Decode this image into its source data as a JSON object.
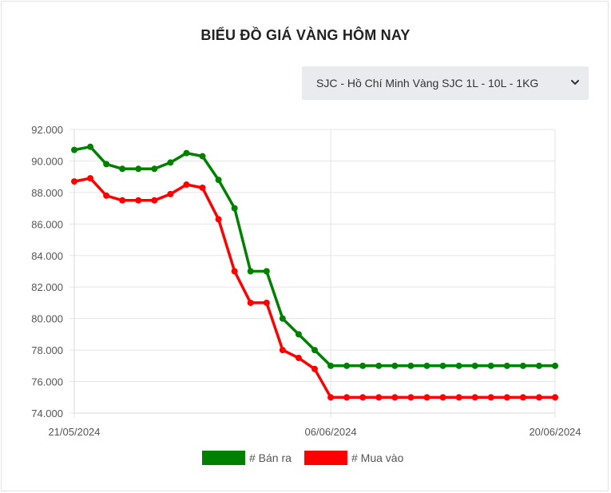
{
  "title": "BIỂU ĐỒ GIÁ VÀNG HÔM NAY",
  "selector": {
    "selected": "SJC - Hồ Chí Minh Vàng SJC 1L - 10L - 1KG"
  },
  "colors": {
    "sell": "#008000",
    "buy": "#ff0000",
    "grid": "#e5e5e5"
  },
  "chart_data": {
    "type": "line",
    "title": "BIỂU ĐỒ GIÁ VÀNG HÔM NAY",
    "xlabel": "",
    "ylabel": "",
    "ylim": [
      74000,
      92000
    ],
    "yticks": [
      "74.000",
      "76.000",
      "78.000",
      "80.000",
      "82.000",
      "84.000",
      "86.000",
      "88.000",
      "90.000",
      "92.000"
    ],
    "x_tick_labels": [
      "21/05/2024",
      "06/06/2024",
      "20/06/2024"
    ],
    "x_tick_indices": [
      0,
      16,
      30
    ],
    "grid": true,
    "legend_position": "bottom",
    "series": [
      {
        "name": "# Bán ra",
        "color": "#008000",
        "values": [
          90700,
          90900,
          89800,
          89500,
          89500,
          89500,
          89900,
          90500,
          90300,
          88800,
          87000,
          83000,
          83000,
          80000,
          79000,
          78000,
          77000,
          77000,
          77000,
          77000,
          77000,
          77000,
          77000,
          77000,
          77000,
          77000,
          77000,
          77000,
          77000,
          77000,
          77000
        ]
      },
      {
        "name": "# Mua vào",
        "color": "#ff0000",
        "values": [
          88700,
          88900,
          87800,
          87500,
          87500,
          87500,
          87900,
          88500,
          88300,
          86300,
          83000,
          81000,
          81000,
          78000,
          77500,
          76800,
          75000,
          75000,
          75000,
          75000,
          75000,
          75000,
          75000,
          75000,
          75000,
          75000,
          75000,
          75000,
          75000,
          75000,
          75000
        ]
      }
    ]
  }
}
